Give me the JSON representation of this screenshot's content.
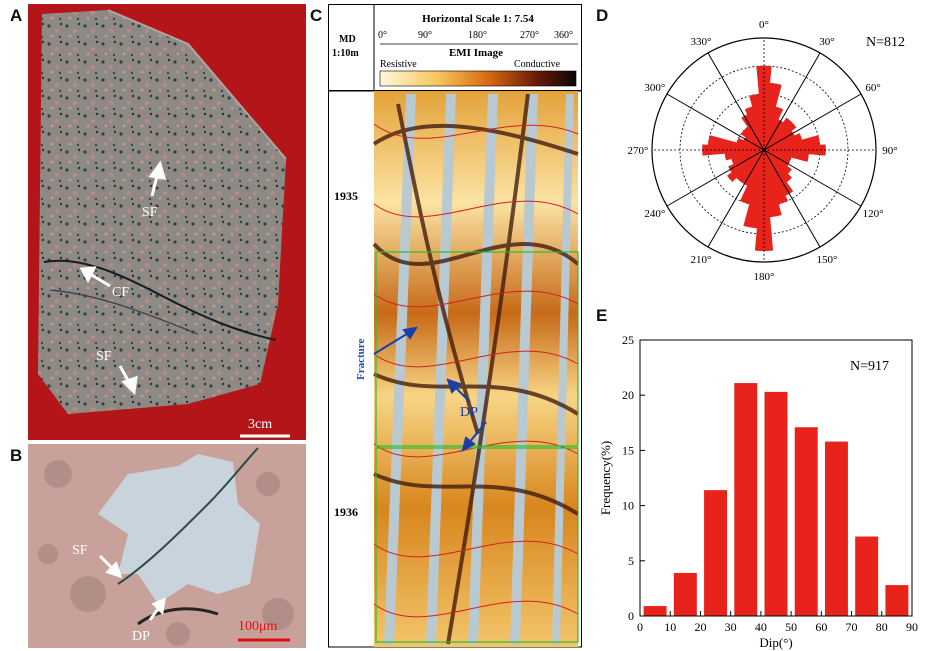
{
  "panels": {
    "a": {
      "letter": "A",
      "labels": {
        "sf_top": "SF",
        "cf": "CF",
        "sf_bottom": "SF",
        "scale": "3cm"
      }
    },
    "b": {
      "letter": "B",
      "labels": {
        "sf": "SF",
        "dp": "DP",
        "scale": "100μm"
      }
    },
    "c": {
      "letter": "C",
      "md_label": "MD",
      "md_scale": "1:10m",
      "horizontal_scale": "Horizontal Scale 1: 7.54",
      "azimuth_ticks": [
        "0°",
        "90°",
        "180°",
        "270°",
        "360°"
      ],
      "emi_title": "EMI Image",
      "resistive_label": "Resistive",
      "conductive_label": "Conductive",
      "depths": [
        "1935",
        "1936"
      ],
      "fracture_label": "Fracture",
      "dp_label": "DP"
    },
    "d": {
      "letter": "D",
      "n_label": "N=812",
      "azimuth_labels": [
        "0°",
        "30°",
        "60°",
        "90°",
        "120°",
        "150°",
        "180°",
        "210°",
        "240°",
        "270°",
        "300°",
        "330°"
      ]
    },
    "e": {
      "letter": "E",
      "n_label": "N=917"
    }
  },
  "colors": {
    "bar_red": "#e8231c",
    "arrow_blue": "#1a3fa8",
    "fracture_blue": "#1f4fb4",
    "scale_red": "#e01010",
    "core_background": "#b31518",
    "section_pink": "#c7a19a"
  },
  "chart_data": [
    {
      "type": "rose",
      "panel": "D",
      "sector_width_deg": 10,
      "directions_deg": [
        0,
        10,
        20,
        30,
        40,
        50,
        60,
        70,
        80,
        90,
        100,
        110,
        120,
        130,
        140,
        150,
        160,
        170,
        180,
        190,
        200,
        210,
        220,
        230,
        240,
        250,
        260,
        270,
        280,
        290,
        300,
        310,
        320,
        330,
        340,
        350
      ],
      "values": [
        7.5,
        6.0,
        4.0,
        3.0,
        3.5,
        3.5,
        3.0,
        3.5,
        5.0,
        5.5,
        4.0,
        2.5,
        2.5,
        3.0,
        3.5,
        4.5,
        5.0,
        6.0,
        9.0,
        7.0,
        5.0,
        3.5,
        3.5,
        4.0,
        3.5,
        3.0,
        3.5,
        5.5,
        5.0,
        2.5,
        2.0,
        2.5,
        2.5,
        3.5,
        4.0,
        5.0
      ],
      "rmax": 10,
      "rings": 4,
      "grid": true
    },
    {
      "type": "bar",
      "panel": "E",
      "bin_edges": [
        0,
        10,
        20,
        30,
        40,
        50,
        60,
        70,
        80,
        90
      ],
      "values": [
        0.9,
        3.9,
        11.4,
        21.1,
        20.3,
        17.1,
        15.8,
        7.2,
        2.8
      ],
      "xlabel": "Dip(°)",
      "ylabel": "Frequency(%)",
      "xlim": [
        0,
        90
      ],
      "ylim": [
        0,
        25
      ],
      "xticks": [
        0,
        10,
        20,
        30,
        40,
        50,
        60,
        70,
        80,
        90
      ],
      "yticks": [
        0,
        5,
        10,
        15,
        20,
        25
      ]
    }
  ]
}
